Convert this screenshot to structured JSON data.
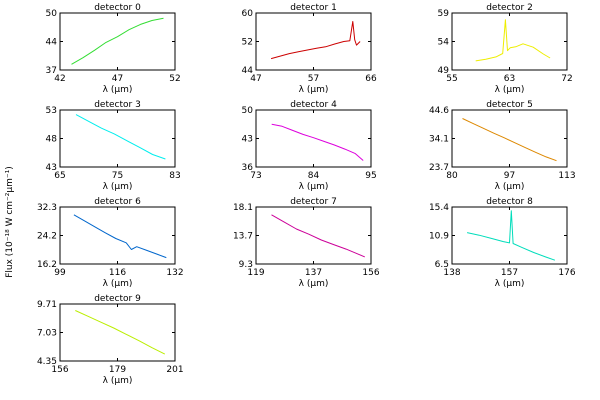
{
  "figure": {
    "ylabel": "Flux (10⁻¹⁸ W cm⁻²μm⁻¹)"
  },
  "chart_data": [
    {
      "type": "line",
      "title": "detector 0",
      "xlabel": "λ (μm)",
      "color": "#33dd33",
      "xlim": [
        42,
        52
      ],
      "ylim": [
        37,
        50
      ],
      "xticks": [
        "42",
        "47",
        "52"
      ],
      "yticks": [
        "37",
        "44",
        "50"
      ],
      "series": [
        {
          "x": [
            43.0,
            44.0,
            45.0,
            46.0,
            47.0,
            48.0,
            49.0,
            50.0,
            51.0
          ],
          "y": [
            38.3,
            39.8,
            41.5,
            43.3,
            44.6,
            46.2,
            47.4,
            48.3,
            48.8
          ]
        }
      ]
    },
    {
      "type": "line",
      "title": "detector 1",
      "xlabel": "λ (μm)",
      "color": "#cc0000",
      "xlim": [
        47,
        66
      ],
      "ylim": [
        44,
        60
      ],
      "xticks": [
        "47",
        "57",
        "66"
      ],
      "yticks": [
        "44",
        "52",
        "60"
      ],
      "series": [
        {
          "x": [
            49.5,
            51.0,
            52.5,
            54.0,
            55.5,
            57.0,
            58.5,
            60.0,
            61.5,
            62.5,
            63.0,
            63.3,
            63.6,
            64.2
          ],
          "y": [
            47.2,
            47.9,
            48.6,
            49.1,
            49.6,
            50.1,
            50.5,
            51.3,
            52.0,
            52.2,
            57.6,
            52.5,
            51.0,
            52.0
          ]
        }
      ]
    },
    {
      "type": "line",
      "title": "detector 2",
      "xlabel": "λ (μm)",
      "color": "#eeee00",
      "xlim": [
        55,
        72
      ],
      "ylim": [
        49,
        59
      ],
      "xticks": [
        "55",
        "63",
        "72"
      ],
      "yticks": [
        "49",
        "54",
        "59"
      ],
      "series": [
        {
          "x": [
            58.5,
            60.0,
            61.5,
            62.5,
            62.9,
            63.2,
            63.6,
            64.5,
            65.5,
            67.0,
            68.5,
            69.5
          ],
          "y": [
            50.6,
            50.9,
            51.3,
            51.9,
            57.8,
            52.4,
            52.9,
            53.1,
            53.6,
            53.0,
            51.8,
            51.1
          ]
        }
      ]
    },
    {
      "type": "line",
      "title": "detector 3",
      "xlabel": "λ (μm)",
      "color": "#00eeee",
      "xlim": [
        65,
        83
      ],
      "ylim": [
        43,
        53
      ],
      "xticks": [
        "65",
        "75",
        "83"
      ],
      "yticks": [
        "43",
        "48",
        "53"
      ],
      "series": [
        {
          "x": [
            67.5,
            69.5,
            71.5,
            73.5,
            75.5,
            77.5,
            79.5,
            81.5
          ],
          "y": [
            52.2,
            51.0,
            49.8,
            48.8,
            47.6,
            46.4,
            45.2,
            44.4
          ]
        }
      ]
    },
    {
      "type": "line",
      "title": "detector 4",
      "xlabel": "λ (μm)",
      "color": "#dd00dd",
      "xlim": [
        73,
        95
      ],
      "ylim": [
        36,
        50
      ],
      "xticks": [
        "73",
        "84",
        "95"
      ],
      "yticks": [
        "36",
        "43",
        "50"
      ],
      "series": [
        {
          "x": [
            76.0,
            78.0,
            80.0,
            82.0,
            84.0,
            86.0,
            88.0,
            90.0,
            92.0,
            93.5
          ],
          "y": [
            46.5,
            46.0,
            45.0,
            44.0,
            43.2,
            42.3,
            41.4,
            40.4,
            39.3,
            37.6
          ]
        }
      ]
    },
    {
      "type": "line",
      "title": "detector 5",
      "xlabel": "λ (μm)",
      "color": "#dd8800",
      "xlim": [
        80,
        113
      ],
      "ylim": [
        23.7,
        44.6
      ],
      "xticks": [
        "80",
        "97",
        "113"
      ],
      "yticks": [
        "23.7",
        "34.1",
        "44.6"
      ],
      "series": [
        {
          "x": [
            83.0,
            86.0,
            89.0,
            92.0,
            95.0,
            98.0,
            101.0,
            104.0,
            107.0,
            110.0
          ],
          "y": [
            41.5,
            39.7,
            37.9,
            36.1,
            34.4,
            32.6,
            30.8,
            29.1,
            27.4,
            26.0
          ]
        }
      ]
    },
    {
      "type": "line",
      "title": "detector 6",
      "xlabel": "λ (μm)",
      "color": "#0066cc",
      "xlim": [
        99,
        132
      ],
      "ylim": [
        16.2,
        32.3
      ],
      "xticks": [
        "99",
        "116",
        "132"
      ],
      "yticks": [
        "16.2",
        "24.2",
        "32.3"
      ],
      "series": [
        {
          "x": [
            103.0,
            106.0,
            109.0,
            112.0,
            115.0,
            118.0,
            119.5,
            121.0,
            124.0,
            127.0,
            129.5
          ],
          "y": [
            30.1,
            28.4,
            26.7,
            25.0,
            23.4,
            22.2,
            20.3,
            21.1,
            20.0,
            18.9,
            18.0
          ]
        }
      ]
    },
    {
      "type": "line",
      "title": "detector 7",
      "xlabel": "λ (μm)",
      "color": "#cc0099",
      "xlim": [
        119,
        156
      ],
      "ylim": [
        9.3,
        18.1
      ],
      "xticks": [
        "119",
        "137",
        "156"
      ],
      "yticks": [
        "9.3",
        "13.7",
        "18.1"
      ],
      "series": [
        {
          "x": [
            124.0,
            128.0,
            132.0,
            136.0,
            140.0,
            144.0,
            148.0,
            152.0,
            154.0
          ],
          "y": [
            16.9,
            15.8,
            14.7,
            13.9,
            13.0,
            12.3,
            11.6,
            10.8,
            10.4
          ]
        }
      ]
    },
    {
      "type": "line",
      "title": "detector 8",
      "xlabel": "λ (μm)",
      "color": "#00ddbb",
      "xlim": [
        138,
        176
      ],
      "ylim": [
        6.5,
        15.4
      ],
      "xticks": [
        "138",
        "157",
        "176"
      ],
      "yticks": [
        "6.5",
        "10.9",
        "15.4"
      ],
      "series": [
        {
          "x": [
            143.0,
            147.0,
            151.0,
            155.0,
            157.0,
            157.6,
            158.2,
            161.0,
            165.0,
            169.0,
            172.0
          ],
          "y": [
            11.4,
            11.0,
            10.5,
            10.0,
            9.8,
            14.8,
            9.7,
            9.1,
            8.3,
            7.6,
            7.1
          ]
        }
      ]
    },
    {
      "type": "line",
      "title": "detector 9",
      "xlabel": "λ (μm)",
      "color": "#bbee00",
      "xlim": [
        156,
        201
      ],
      "ylim": [
        4.35,
        9.71
      ],
      "xticks": [
        "156",
        "179",
        "201"
      ],
      "yticks": [
        "4.35",
        "7.03",
        "9.71"
      ],
      "series": [
        {
          "x": [
            162.0,
            167.0,
            172.0,
            177.0,
            182.0,
            187.0,
            192.0,
            197.0
          ],
          "y": [
            9.1,
            8.55,
            8.0,
            7.45,
            6.85,
            6.25,
            5.6,
            5.0
          ]
        }
      ]
    }
  ]
}
